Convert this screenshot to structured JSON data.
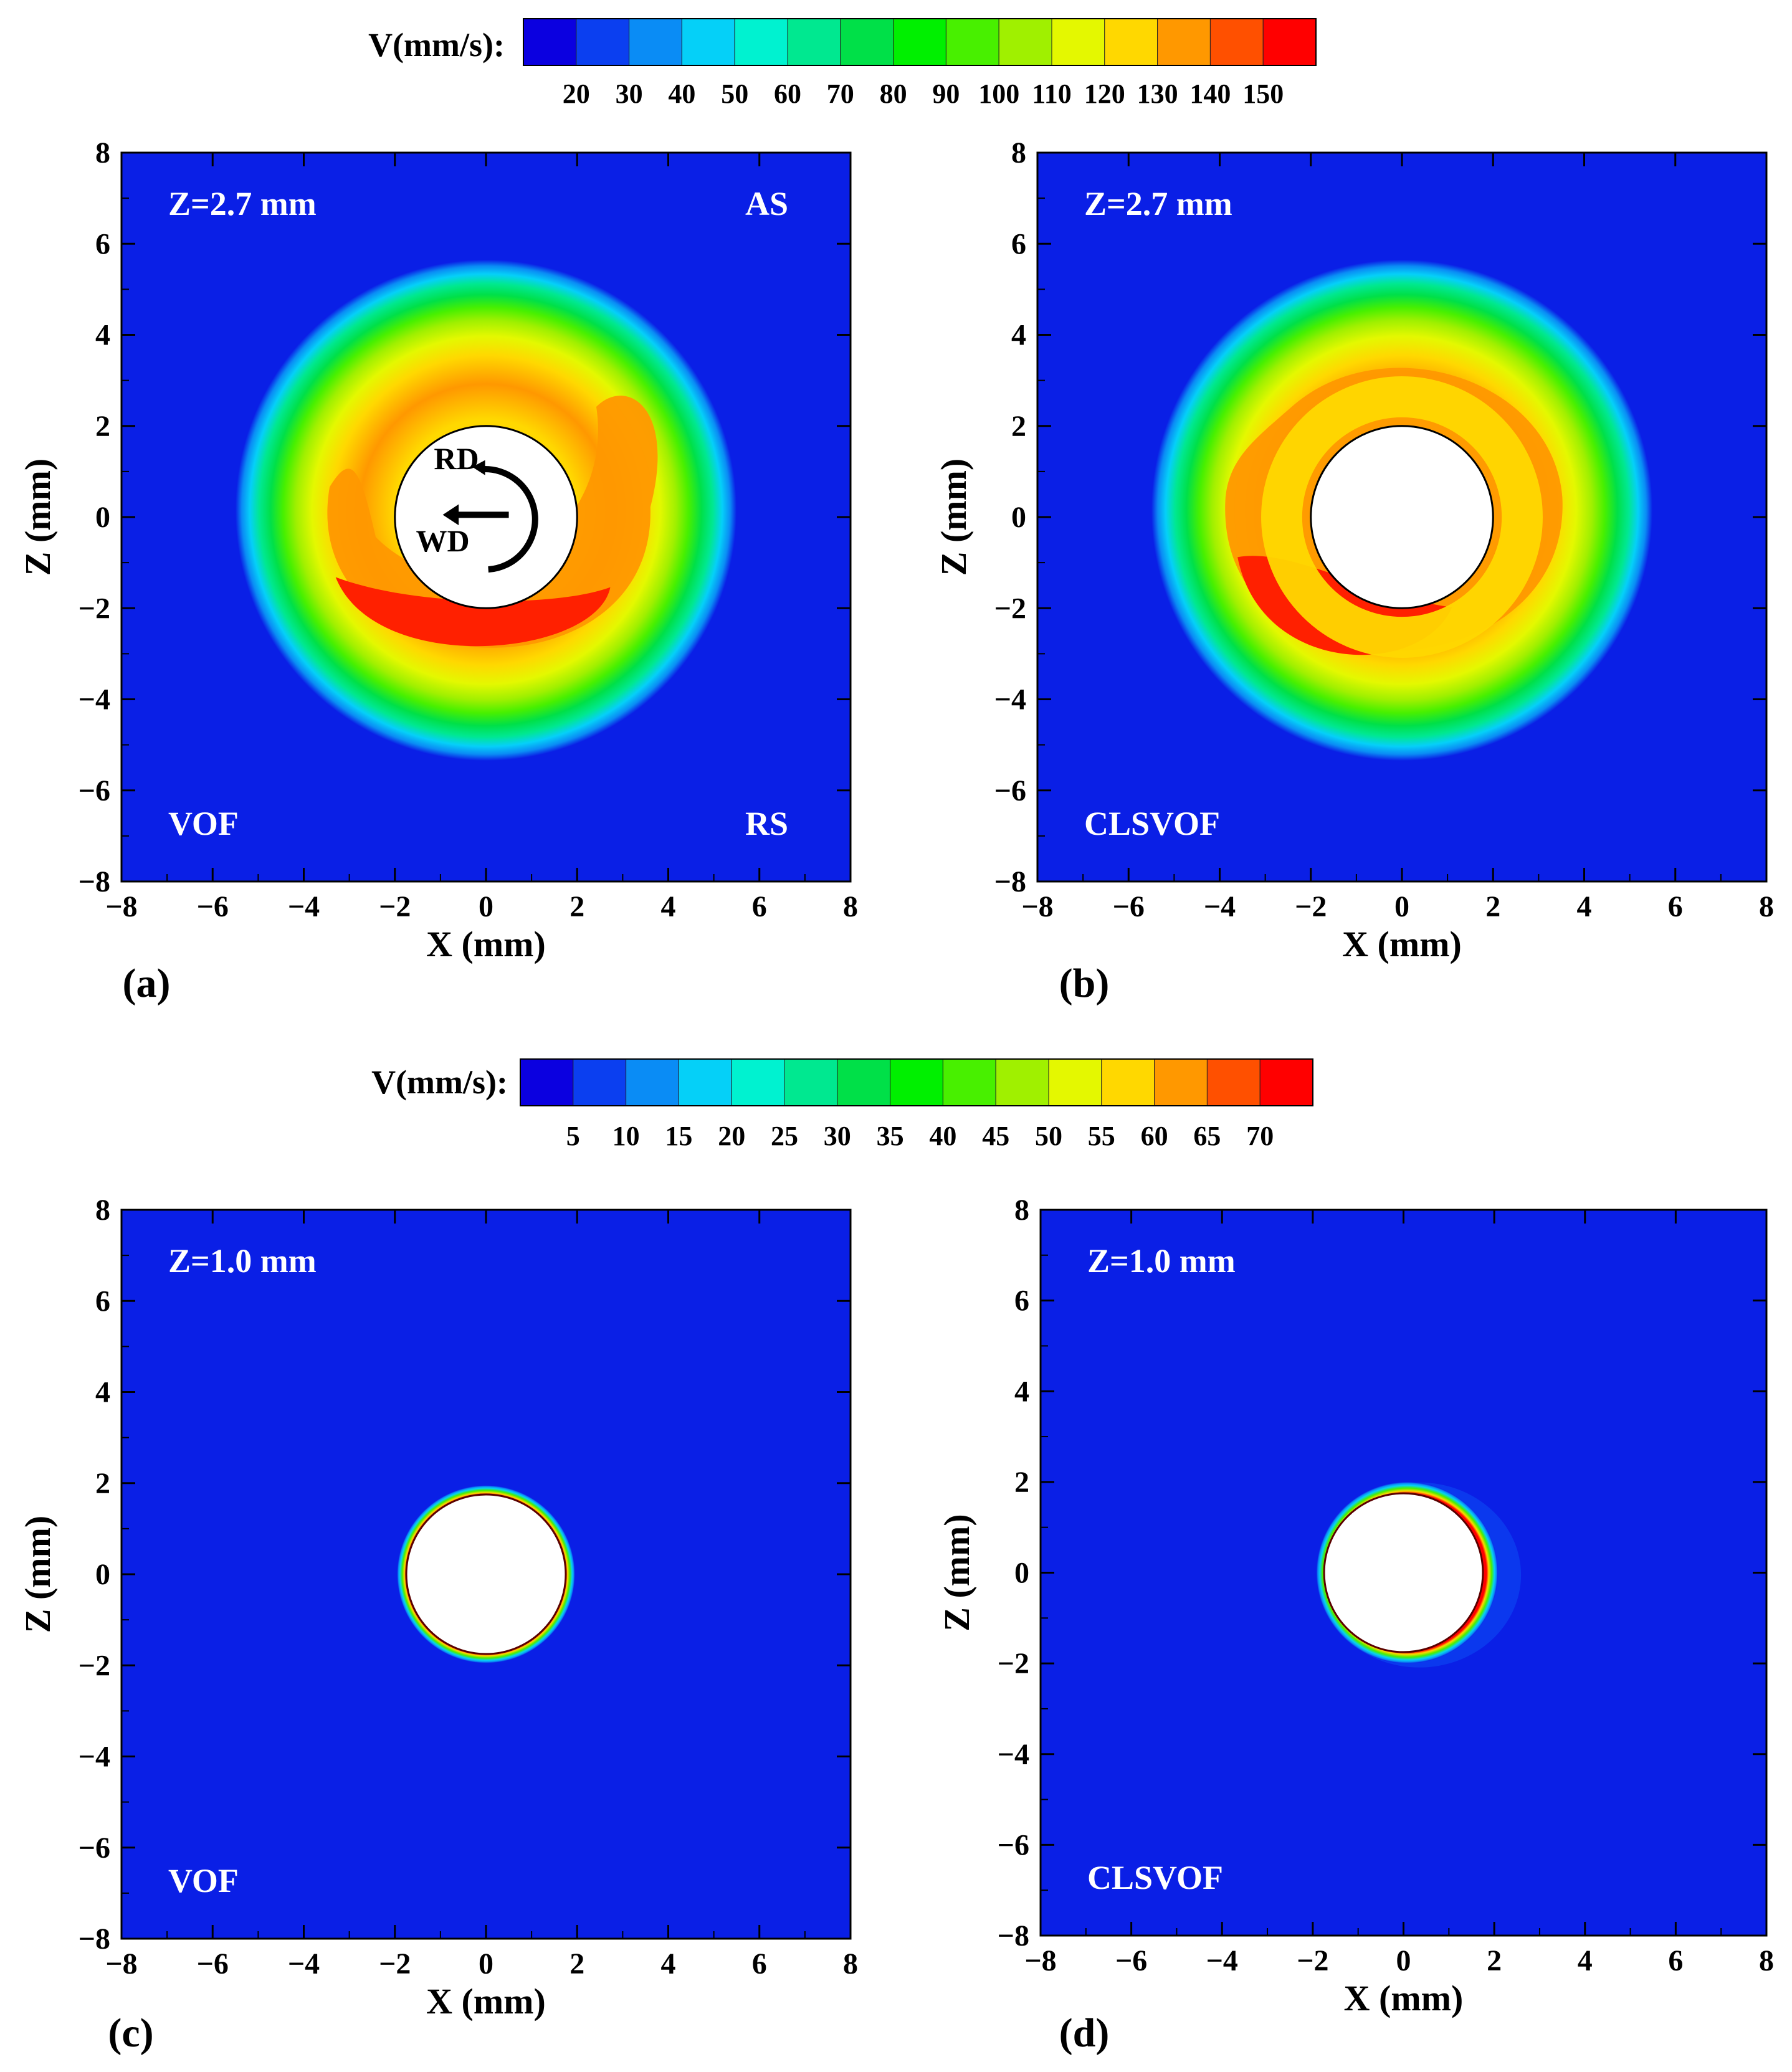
{
  "figure": {
    "colorbar_palette": [
      "#0b00e0",
      "#0b3ff0",
      "#0a8cf5",
      "#05d0f8",
      "#00f2d0",
      "#00e890",
      "#00e048",
      "#00f000",
      "#48f000",
      "#a0f000",
      "#e4f800",
      "#ffd800",
      "#ff9800",
      "#ff5000",
      "#ff0000"
    ],
    "background_color": "#0a1fe6",
    "unit_label": "(mm)",
    "arrow_labels": {
      "rd": "RD",
      "wd": "WD"
    }
  },
  "chart_data": [
    {
      "type": "heatmap",
      "panel": "(a)",
      "title": "Z=2.7 mm",
      "method": "VOF",
      "corner_labels": [
        "AS",
        "RS"
      ],
      "xlabel": "X (mm)",
      "ylabel": "Z (mm)",
      "xlim": [
        -8,
        8
      ],
      "ylim": [
        -8,
        8
      ],
      "xticks": [
        -8,
        -6,
        -4,
        -2,
        0,
        2,
        4,
        6,
        8
      ],
      "yticks": [
        -8,
        -6,
        -4,
        -2,
        0,
        2,
        4,
        6,
        8
      ],
      "colorbar": {
        "label": "V(mm/s):",
        "ticks": [
          20,
          30,
          40,
          50,
          60,
          70,
          80,
          90,
          100,
          110,
          120,
          130,
          140,
          150
        ]
      },
      "tool_radius_mm": 2.0,
      "flow_extent_radius_mm": 5.5
    },
    {
      "type": "heatmap",
      "panel": "(b)",
      "title": "Z=2.7 mm",
      "method": "CLSVOF",
      "xlabel": "X (mm)",
      "ylabel": "Z (mm)",
      "xlim": [
        -8,
        8
      ],
      "ylim": [
        -8,
        8
      ],
      "xticks": [
        -8,
        -6,
        -4,
        -2,
        0,
        2,
        4,
        6,
        8
      ],
      "yticks": [
        -8,
        -6,
        -4,
        -2,
        0,
        2,
        4,
        6,
        8
      ],
      "colorbar": {
        "label": "V(mm/s):",
        "ticks": [
          20,
          30,
          40,
          50,
          60,
          70,
          80,
          90,
          100,
          110,
          120,
          130,
          140,
          150
        ]
      },
      "tool_radius_mm": 2.0,
      "flow_extent_radius_mm": 5.5
    },
    {
      "type": "heatmap",
      "panel": "(c)",
      "title": "Z=1.0 mm",
      "method": "VOF",
      "xlabel": "X (mm)",
      "ylabel": "Z (mm)",
      "xlim": [
        -8,
        8
      ],
      "ylim": [
        -8,
        8
      ],
      "xticks": [
        -8,
        -6,
        -4,
        -2,
        0,
        2,
        4,
        6,
        8
      ],
      "yticks": [
        -8,
        -6,
        -4,
        -2,
        0,
        2,
        4,
        6,
        8
      ],
      "colorbar": {
        "label": "V(mm/s):",
        "ticks": [
          5,
          10,
          15,
          20,
          25,
          30,
          35,
          40,
          45,
          50,
          55,
          60,
          65,
          70
        ]
      },
      "tool_radius_mm": 1.75,
      "flow_extent_radius_mm": 1.95
    },
    {
      "type": "heatmap",
      "panel": "(d)",
      "title": "Z=1.0 mm",
      "method": "CLSVOF",
      "xlabel": "X (mm)",
      "ylabel": "Z (mm)",
      "xlim": [
        -8,
        8
      ],
      "ylim": [
        -8,
        8
      ],
      "xticks": [
        -8,
        -6,
        -4,
        -2,
        0,
        2,
        4,
        6,
        8
      ],
      "yticks": [
        -8,
        -6,
        -4,
        -2,
        0,
        2,
        4,
        6,
        8
      ],
      "colorbar": {
        "label": "V(mm/s):",
        "ticks": [
          5,
          10,
          15,
          20,
          25,
          30,
          35,
          40,
          45,
          50,
          55,
          60,
          65,
          70
        ]
      },
      "tool_radius_mm": 1.75,
      "flow_extent_radius_mm": 2.0
    }
  ]
}
